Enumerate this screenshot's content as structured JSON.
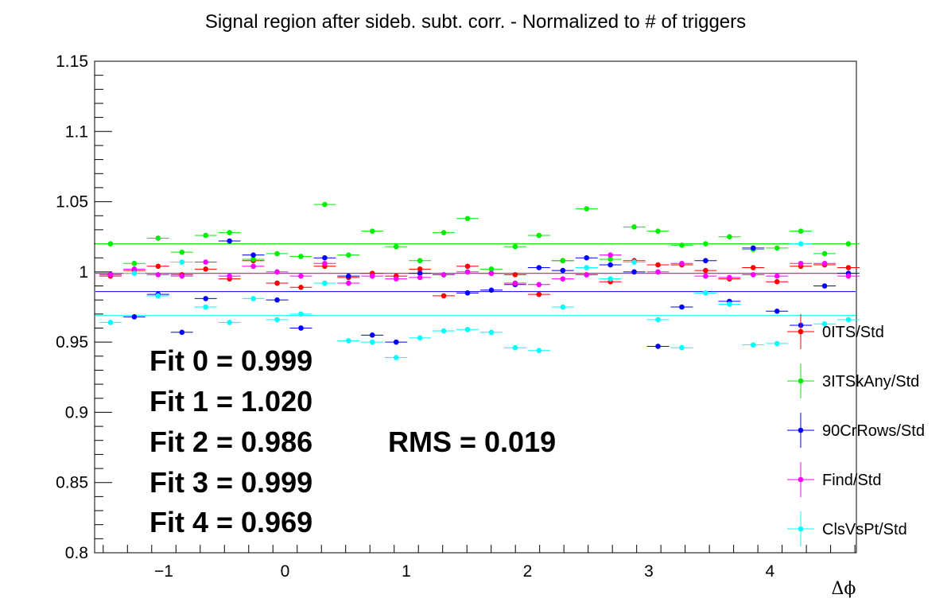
{
  "chart_data": {
    "type": "scatter",
    "title": "Signal region after sideb. subt. corr. - Normalized to # of triggers",
    "xlabel": "Δϕ",
    "ylabel": "",
    "xlim": [
      -1.5708,
      4.7124
    ],
    "ylim": [
      0.8,
      1.15
    ],
    "x_ticks": [
      -1,
      0,
      1,
      2,
      3,
      4
    ],
    "x_tick_labels": [
      "−1",
      "0",
      "1",
      "2",
      "3",
      "4"
    ],
    "y_ticks": [
      0.8,
      0.85,
      0.9,
      0.95,
      1,
      1.05,
      1.1,
      1.15
    ],
    "y_tick_labels": [
      "0.8",
      "0.85",
      "0.9",
      "0.95",
      "1",
      "1.05",
      "1.1",
      "1.15"
    ],
    "x": [
      -1.4399,
      -1.2435,
      -1.0472,
      -0.8508,
      -0.6545,
      -0.4581,
      -0.2618,
      -0.0654,
      0.1309,
      0.3272,
      0.5236,
      0.7199,
      0.9163,
      1.1126,
      1.309,
      1.5053,
      1.7017,
      1.898,
      2.0944,
      2.2907,
      2.4871,
      2.6834,
      2.8798,
      3.0761,
      3.2725,
      3.4688,
      3.6652,
      3.8615,
      4.0579,
      4.2542,
      4.4506,
      4.6469
    ],
    "series": [
      {
        "name": "0ITS/Std",
        "color": "#ff0000",
        "values": [
          0.997,
          1.001,
          1.004,
          0.998,
          1.002,
          0.995,
          1.008,
          0.992,
          0.989,
          1.004,
          0.996,
          0.999,
          0.997,
          1.002,
          0.983,
          1.004,
          0.999,
          0.998,
          0.984,
          1.008,
          0.998,
          0.993,
          1.008,
          1.005,
          1.005,
          1.001,
          0.995,
          1.003,
          0.993,
          1.004,
          1.005,
          1.003
        ],
        "fit": 0.999
      },
      {
        "name": "3ITSkAny/Std",
        "color": "#00ee00",
        "values": [
          1.02,
          1.006,
          1.024,
          1.014,
          1.026,
          1.028,
          1.009,
          1.013,
          1.011,
          1.048,
          1.012,
          1.029,
          1.018,
          1.008,
          1.028,
          1.038,
          1.002,
          1.018,
          1.026,
          1.008,
          1.045,
          1.009,
          1.032,
          1.029,
          1.019,
          1.02,
          1.025,
          1.016,
          1.017,
          1.029,
          1.013,
          1.02
        ],
        "fit": 1.02
      },
      {
        "name": "90CrRows/Std",
        "color": "#0000ff",
        "values": [
          0.998,
          0.968,
          0.984,
          0.957,
          0.981,
          1.022,
          1.012,
          0.98,
          0.96,
          1.01,
          0.997,
          0.955,
          0.95,
          0.999,
          0.998,
          0.985,
          0.987,
          0.991,
          1.003,
          1.001,
          1.01,
          1.005,
          1.0,
          0.947,
          0.975,
          1.008,
          0.979,
          1.017,
          0.972,
          0.962,
          0.99,
          0.999
        ],
        "fit": 0.986
      },
      {
        "name": "Find/Std",
        "color": "#ff00ff",
        "values": [
          0.998,
          1.002,
          0.998,
          0.997,
          1.007,
          0.997,
          1.004,
          1.0,
          0.997,
          1.006,
          0.992,
          0.997,
          0.995,
          0.996,
          0.998,
          1.0,
          0.999,
          0.992,
          0.991,
          0.995,
          0.998,
          1.012,
          1.007,
          1.0,
          1.006,
          0.997,
          0.996,
          0.998,
          0.997,
          1.006,
          1.006,
          0.997
        ],
        "fit": 0.999
      },
      {
        "name": "ClsVsPt/Std",
        "color": "#00ffff",
        "values": [
          0.964,
          0.999,
          0.983,
          1.007,
          0.975,
          0.964,
          0.981,
          0.966,
          0.97,
          0.992,
          0.951,
          0.95,
          0.939,
          0.953,
          0.958,
          0.959,
          0.957,
          0.946,
          0.944,
          0.975,
          1.003,
          0.995,
          1.007,
          0.966,
          0.946,
          0.985,
          0.977,
          0.948,
          0.949,
          1.02,
          0.963,
          0.966
        ],
        "fit": 0.969
      }
    ],
    "fit_labels": [
      "Fit 0 = 0.999",
      "Fit 1 = 1.020",
      "Fit 2 = 0.986",
      "Fit 3 = 0.999",
      "Fit 4 = 0.969"
    ],
    "rms_label": "RMS = 0.019",
    "legend_position": "right",
    "grid": false
  }
}
